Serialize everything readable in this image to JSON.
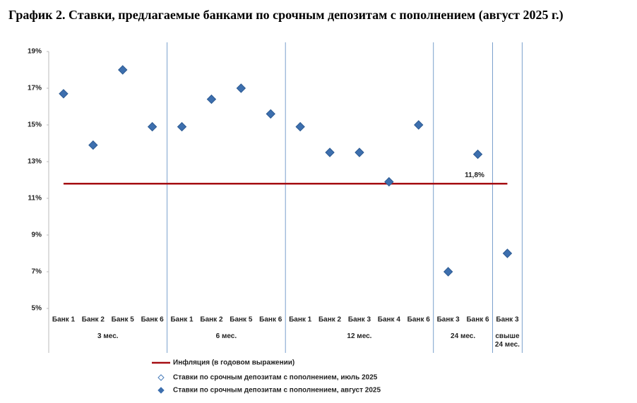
{
  "chart_data": {
    "type": "scatter",
    "title": "График 2. Ставки, предлагаемые банками по срочным депозитам с пополнением (август 2025 г.)",
    "groups": [
      {
        "label": "3 мес.",
        "categories": [
          "Банк 1",
          "Банк 2",
          "Банк 5",
          "Банк 6"
        ]
      },
      {
        "label": "6 мес.",
        "categories": [
          "Банк 1",
          "Банк 2",
          "Банк 5",
          "Банк 6"
        ]
      },
      {
        "label": "12 мес.",
        "categories": [
          "Банк 1",
          "Банк 2",
          "Банк 3",
          "Банк 4",
          "Банк 6"
        ]
      },
      {
        "label": "24 мес.",
        "categories": [
          "Банк 3",
          "Банк 6"
        ]
      },
      {
        "label": "свыше 24 мес.",
        "categories": [
          "Банк 3"
        ]
      }
    ],
    "inflation": {
      "name": "Инфляция (в годовом выражении)",
      "color": "#a50d12",
      "value": 11.8,
      "value_label": "11,8%"
    },
    "series": [
      {
        "name": "Ставки по срочным депозитам с пополнением, июль 2025",
        "color": "#4a7ebb",
        "marker": "hollow",
        "values": [
          null,
          null,
          null,
          null,
          null,
          null,
          null,
          null,
          null,
          null,
          null,
          null,
          null,
          null,
          null,
          null
        ]
      },
      {
        "name": "Ставки по срочным депозитам с пополнением, август 2025",
        "color": "#3d6fae",
        "marker": "filled",
        "values": [
          16.7,
          13.9,
          18.0,
          14.9,
          14.9,
          16.4,
          17.0,
          15.6,
          14.9,
          13.5,
          13.5,
          11.9,
          15.0,
          7.0,
          13.4,
          8.0
        ]
      }
    ],
    "ylim": [
      5,
      19
    ],
    "yticks": [
      {
        "value": 5,
        "label": "5%"
      },
      {
        "value": 7,
        "label": "7%"
      },
      {
        "value": 9,
        "label": "9%"
      },
      {
        "value": 11,
        "label": "11%"
      },
      {
        "value": 13,
        "label": "13%"
      },
      {
        "value": 15,
        "label": "15%"
      },
      {
        "value": 17,
        "label": "17%"
      },
      {
        "value": 19,
        "label": "19%"
      }
    ]
  }
}
